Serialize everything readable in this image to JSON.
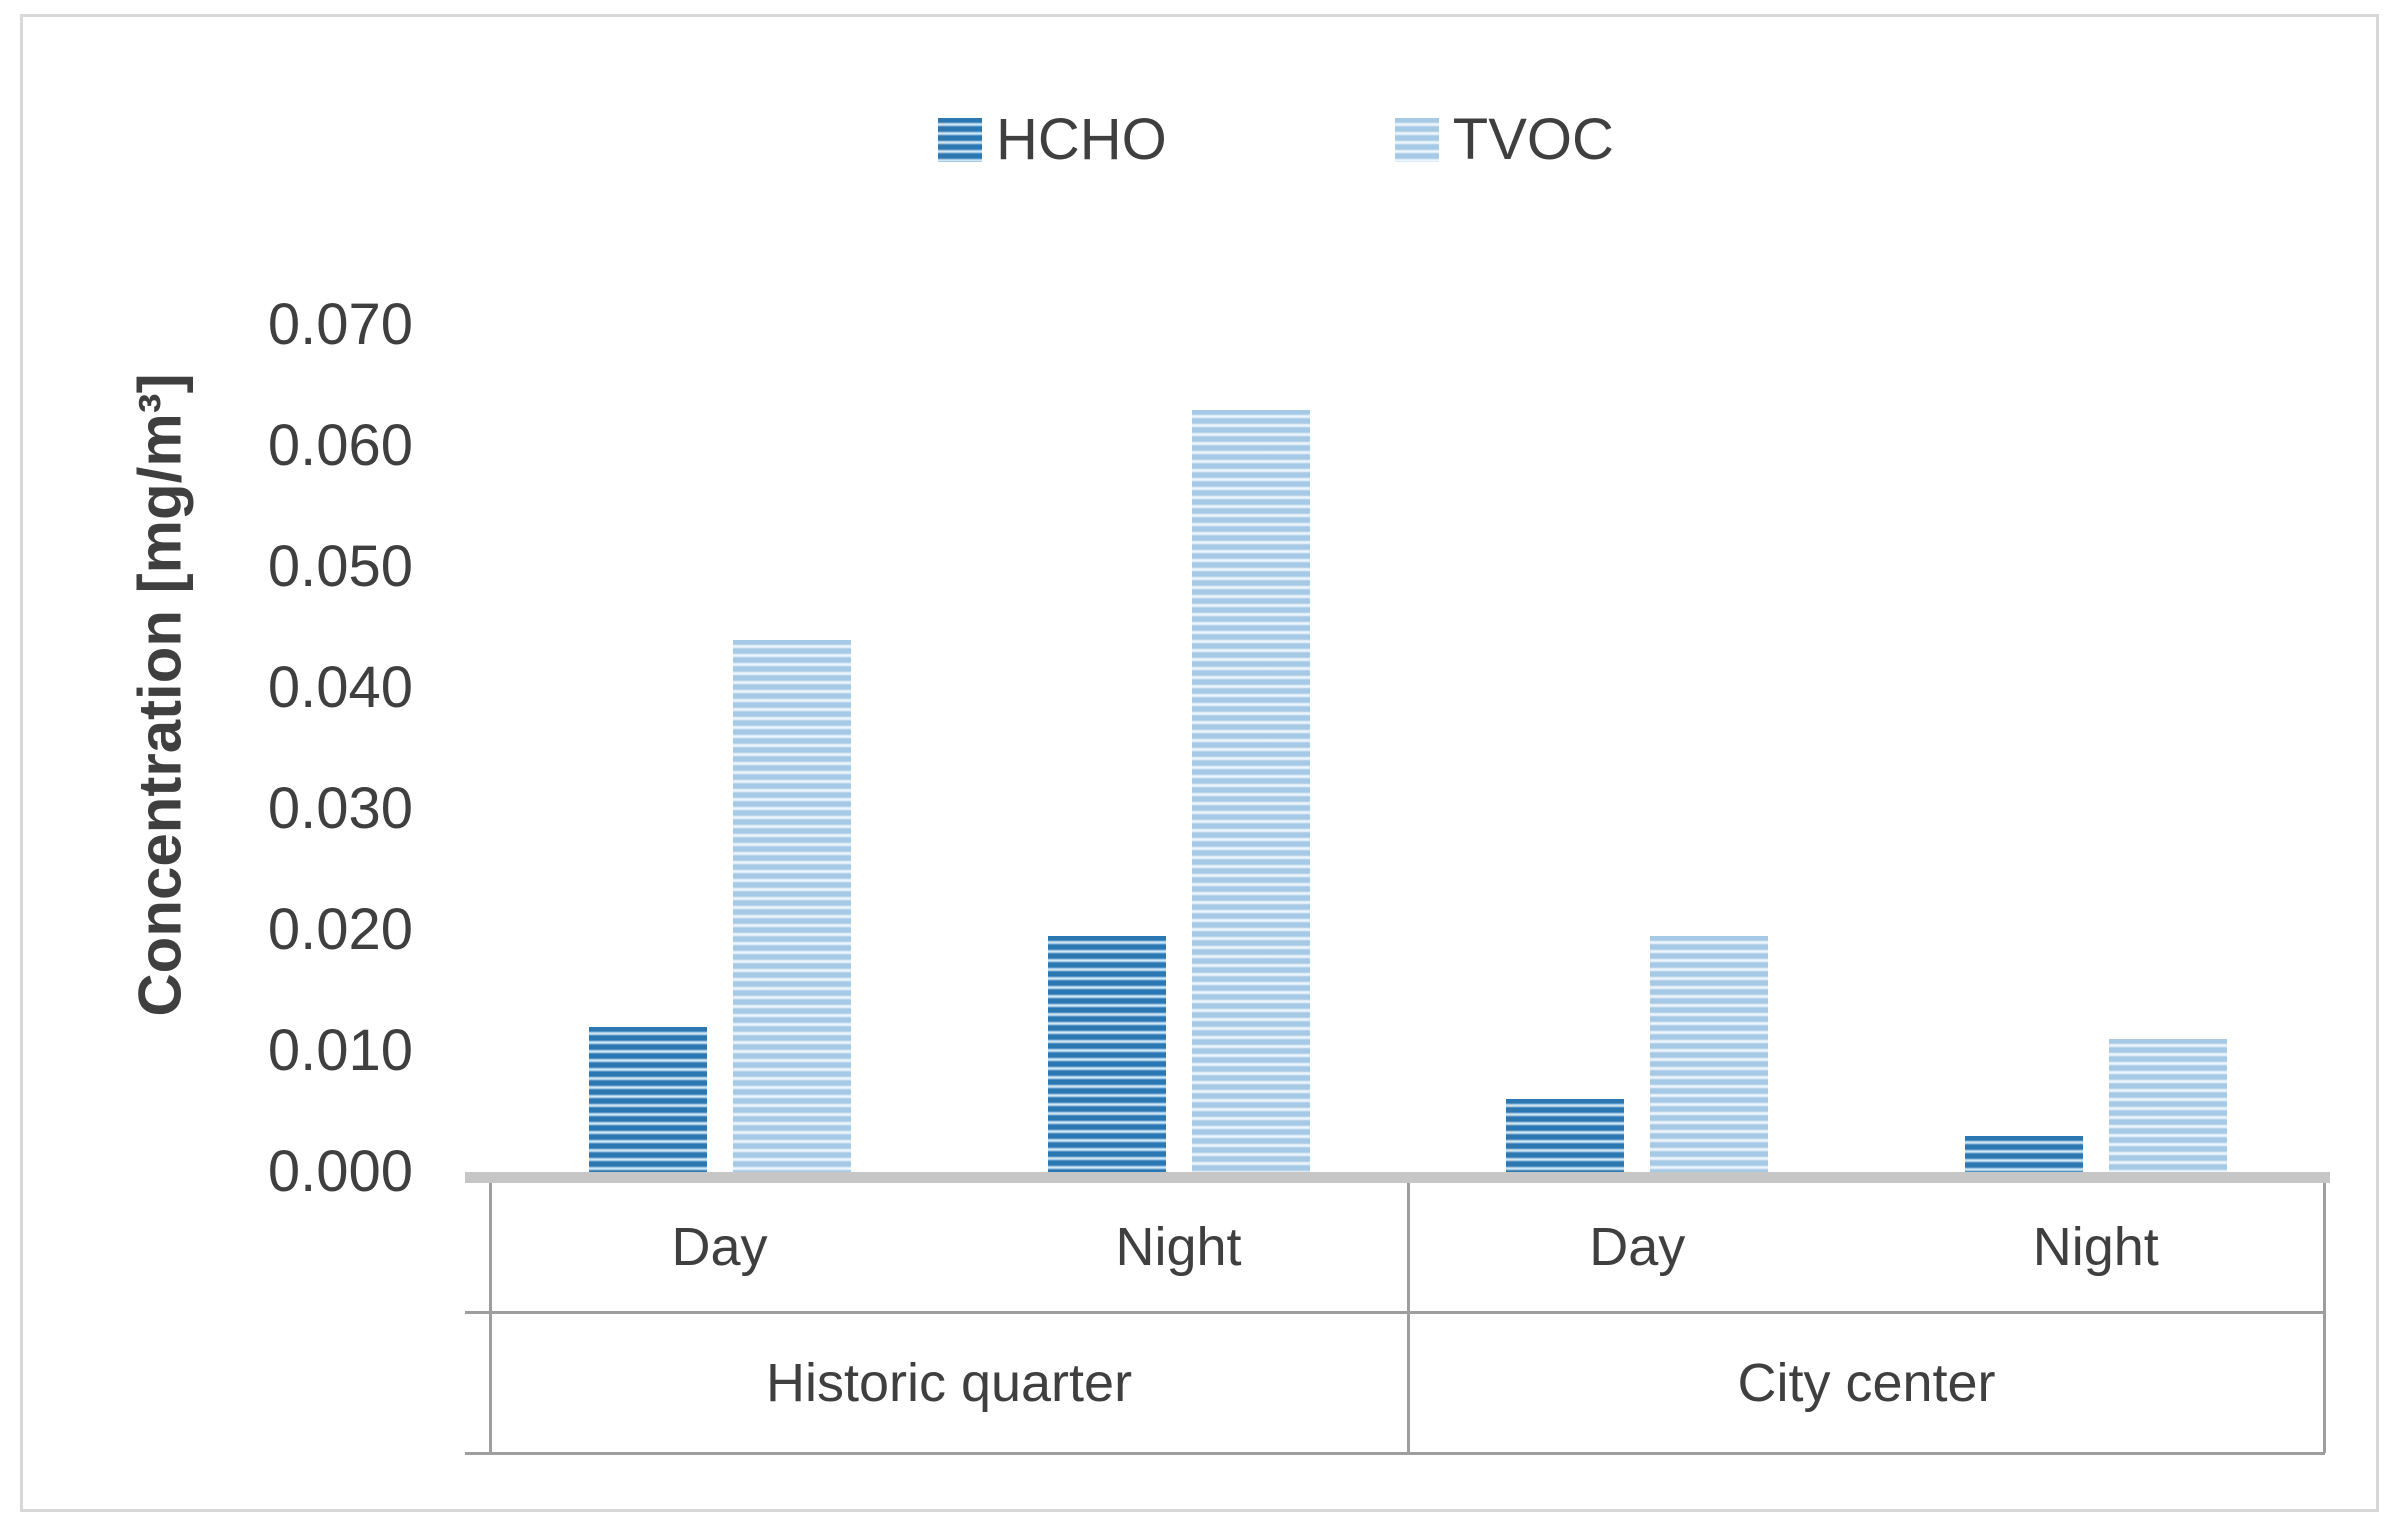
{
  "chart_data": {
    "type": "bar",
    "title": "",
    "ylabel": "Concentration [mg/m³]",
    "xlabel": "",
    "ylim": [
      0,
      0.07
    ],
    "ytick_step": 0.01,
    "ytick_labels": [
      "0.000",
      "0.010",
      "0.020",
      "0.030",
      "0.040",
      "0.050",
      "0.060",
      "0.070"
    ],
    "grid": false,
    "legend_position": "top-center",
    "groups": [
      "Historic quarter",
      "City center"
    ],
    "categories": [
      {
        "group": "Historic quarter",
        "label": "Day"
      },
      {
        "group": "Historic quarter",
        "label": "Night"
      },
      {
        "group": "City center",
        "label": "Day"
      },
      {
        "group": "City center",
        "label": "Night"
      }
    ],
    "series": [
      {
        "name": "HCHO",
        "values": [
          0.012,
          0.0195,
          0.006,
          0.003
        ],
        "color_dark": "#2b77b2",
        "color_light": "#cfe6f5"
      },
      {
        "name": "TVOC",
        "values": [
          0.044,
          0.063,
          0.0195,
          0.011
        ],
        "color_dark": "#a6c9e6",
        "color_light": "#eef6fc"
      }
    ],
    "bar_pattern": "horizontal-stripes"
  },
  "colors": {
    "text": "#3f3f3f",
    "axis_thick_line": "#c6c6c6",
    "axis_thin_line": "#9e9e9e",
    "figure_border": "#d8d8d8",
    "background": "#ffffff"
  }
}
